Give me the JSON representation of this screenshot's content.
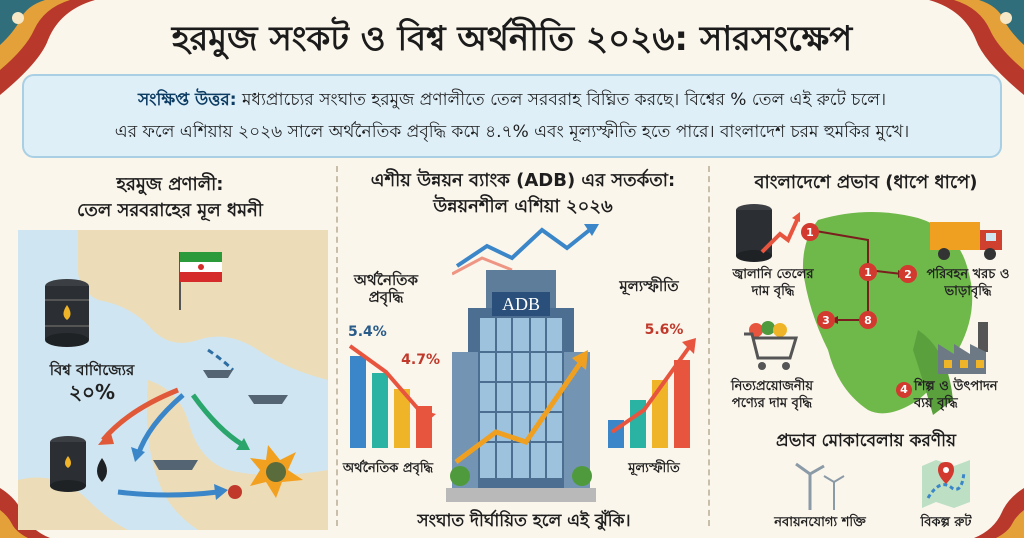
{
  "title": "হরমুজ সংকট ও বিশ্ব অর্থনীতি ২০২৬: সারসংক্ষেপ",
  "summary": {
    "lead": "সংক্ষিপ্ত উত্তর:",
    "line1_rest": " মধ্যপ্রাচ্যের সংঘাত হরমুজ প্রণালীতে তেল সরবরাহ বিঘ্নিত করছে। বিশ্বের % তেল এই রুটে চলে।",
    "line2": "এর ফলে এশিয়ায় ২০২৬ সালে অর্থনৈতিক প্রবৃদ্ধি কমে ৪.৭% এবং মূল্যস্ফীতি হতে পারে। বাংলাদেশ চরম হুমকির মুখে।"
  },
  "left": {
    "title_line1": "হরমুজ প্রণালী:",
    "title_line2": "তেল সরবরাহের মূল ধমনী",
    "trade_label": "বিশ্ব বাণিজ্যের",
    "trade_value": "২০%"
  },
  "middle": {
    "title_line1": "এশীয় উন্নয়ন ব্যাংক (ADB) এর সতর্কতা:",
    "title_line2": "উন্নয়নশীল এশিয়া ২০২৬",
    "bank_sign": "ADB",
    "growth_label_top": "অর্থনৈতিক প্রবৃদ্ধি",
    "growth_label_bottom": "অর্থনৈতিক প্রবৃদ্ধি",
    "inflation_label_top": "মূল্যস্ফীতি",
    "inflation_label_bottom": "মূল্যস্ফীতি",
    "footer": "সংঘাত দীর্ঘায়িত হলে এই ঝুঁকি।"
  },
  "chart_data": [
    {
      "type": "bar",
      "title": "অর্থনৈতিক প্রবৃদ্ধি",
      "data_labels": [
        "5.4%",
        "4.7%"
      ],
      "values": [
        5.4,
        4.7
      ],
      "trend": "down",
      "bar_colors": [
        "#3a86c8",
        "#2ab3a2",
        "#f0b429",
        "#e8553f"
      ]
    },
    {
      "type": "bar",
      "title": "মূল্যস্ফীতি",
      "data_labels": [
        "5.6%"
      ],
      "values": [
        5.6
      ],
      "trend": "up",
      "bar_colors": [
        "#3a86c8",
        "#2ab3a2",
        "#f0b429",
        "#e8553f"
      ]
    }
  ],
  "right": {
    "title": "বাংলাদেশে প্রভাব (ধাপে ধাপে)",
    "step_fuel": "জ্বালানি তেলের দাম বৃদ্ধি",
    "step_transport": "পরিবহন খরচ ও ভাড়াবৃদ্ধি",
    "step_goods": "নিত্যপ্রয়োজনীয় পণ্যের দাম বৃদ্ধি",
    "step_industry_num": "4",
    "step_industry": "শিল্প ও উৎপাদন ব্যয় বৃদ্ধি",
    "map_nums": [
      "1",
      "1",
      "2",
      "3",
      "8"
    ],
    "response_title": "প্রভাব মোকাবেলায় করণীয়",
    "renewable": "নবায়নযোগ্য শক্তি",
    "alt_route": "বিকল্প রুট"
  },
  "colors": {
    "accent_red": "#e8553f",
    "accent_blue": "#3a86c8",
    "summary_bg": "#deeff8",
    "map_green": "#6fb84a"
  }
}
